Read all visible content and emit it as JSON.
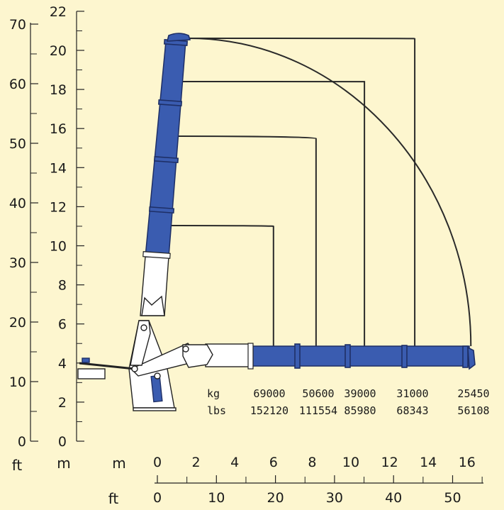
{
  "colors": {
    "background": "#fdf6cf",
    "boom": "#3a5cb0",
    "boom_dark": "#1e2f66",
    "structure": "#ffffff",
    "ink": "#1a1a1a"
  },
  "axes": {
    "ft_unit": "ft",
    "m_unit_left": "m",
    "m_unit_bottom": "m",
    "ft_unit_bottom": "ft",
    "left_ft_ticks": [
      "0",
      "10",
      "20",
      "30",
      "40",
      "50",
      "60",
      "70"
    ],
    "left_m_ticks": [
      "0",
      "2",
      "4",
      "6",
      "8",
      "10",
      "12",
      "14",
      "16",
      "18",
      "20",
      "22"
    ],
    "bottom_m_ticks": [
      "0",
      "2",
      "4",
      "6",
      "8",
      "10",
      "12",
      "14",
      "16"
    ],
    "bottom_ft_ticks": [
      "0",
      "10",
      "20",
      "30",
      "40",
      "50"
    ]
  },
  "load_table": {
    "kg_label": "kg",
    "lbs_label": "lbs",
    "kg_values": [
      "69000",
      "50600",
      "39000",
      "31000",
      "25450"
    ],
    "lbs_values": [
      "152120",
      "111554",
      "85980",
      "68343",
      "56108"
    ]
  },
  "reach_curves": [
    {
      "reach_m": 6.0,
      "top_height_m": 11.0
    },
    {
      "reach_m": 8.2,
      "top_height_m": 15.5
    },
    {
      "reach_m": 10.7,
      "top_height_m": 18.4
    },
    {
      "reach_m": 13.3,
      "top_height_m": 20.6
    },
    {
      "reach_m": 16.2,
      "top_height_m": 20.7
    }
  ]
}
